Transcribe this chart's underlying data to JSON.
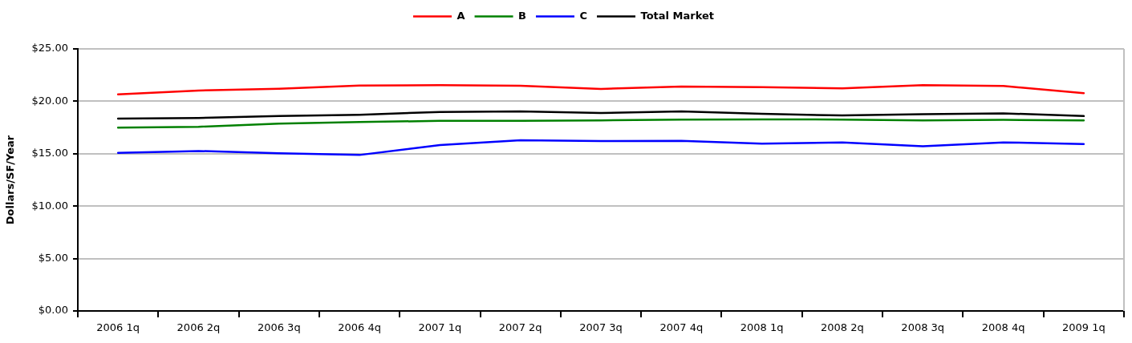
{
  "chart_data": {
    "type": "line",
    "ylabel": "Dollars/SF/Year",
    "categories": [
      "2006 1q",
      "2006 2q",
      "2006 3q",
      "2006 4q",
      "2007 1q",
      "2007 2q",
      "2007 3q",
      "2007 4q",
      "2008 1q",
      "2008 2q",
      "2008 3q",
      "2008 4q",
      "2009 1q"
    ],
    "series": [
      {
        "name": "A",
        "color": "#ff0000",
        "values": [
          20.67,
          21.03,
          21.2,
          21.5,
          21.54,
          21.49,
          21.18,
          21.41,
          21.34,
          21.23,
          21.54,
          21.46,
          20.77
        ]
      },
      {
        "name": "B",
        "color": "#008000",
        "values": [
          17.49,
          17.57,
          17.88,
          18.03,
          18.13,
          18.13,
          18.18,
          18.26,
          18.28,
          18.26,
          18.18,
          18.23,
          18.18
        ]
      },
      {
        "name": "C",
        "color": "#0000ff",
        "values": [
          15.08,
          15.26,
          15.05,
          14.88,
          15.82,
          16.28,
          16.21,
          16.23,
          15.95,
          16.08,
          15.72,
          16.08,
          15.92
        ]
      },
      {
        "name": "Total Market",
        "color": "#000000",
        "values": [
          18.34,
          18.41,
          18.59,
          18.72,
          18.98,
          19.03,
          18.88,
          19.03,
          18.8,
          18.65,
          18.77,
          18.85,
          18.59
        ]
      }
    ],
    "ylim": [
      0,
      25
    ],
    "yticks": [
      {
        "value": 0,
        "label": "$0.00"
      },
      {
        "value": 5,
        "label": "$5.00"
      },
      {
        "value": 10,
        "label": "$10.00"
      },
      {
        "value": 15,
        "label": "$15.00"
      },
      {
        "value": 20,
        "label": "$20.00"
      },
      {
        "value": 25,
        "label": "$25.00"
      }
    ],
    "grid": "y",
    "legend": "top",
    "marker": "none",
    "line_style": "solid"
  }
}
